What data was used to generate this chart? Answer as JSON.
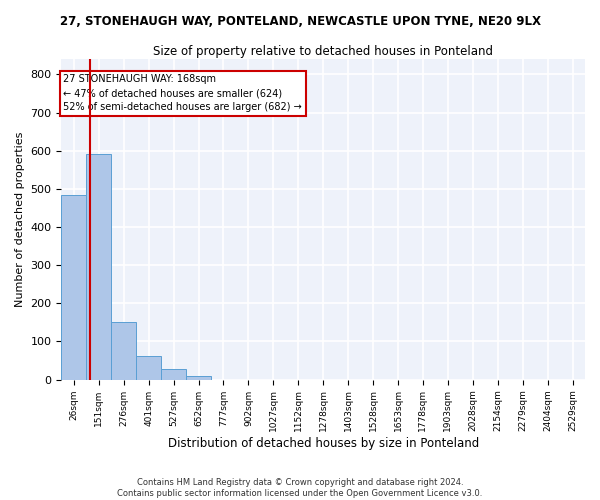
{
  "title1": "27, STONEHAUGH WAY, PONTELAND, NEWCASTLE UPON TYNE, NE20 9LX",
  "title2": "Size of property relative to detached houses in Ponteland",
  "xlabel": "Distribution of detached houses by size in Ponteland",
  "ylabel": "Number of detached properties",
  "categories": [
    "26sqm",
    "151sqm",
    "276sqm",
    "401sqm",
    "527sqm",
    "652sqm",
    "777sqm",
    "902sqm",
    "1027sqm",
    "1152sqm",
    "1278sqm",
    "1403sqm",
    "1528sqm",
    "1653sqm",
    "1778sqm",
    "1903sqm",
    "2028sqm",
    "2154sqm",
    "2279sqm",
    "2404sqm",
    "2529sqm"
  ],
  "bar_values": [
    485,
    592,
    150,
    63,
    28,
    10,
    0,
    0,
    0,
    0,
    0,
    0,
    0,
    0,
    0,
    0,
    0,
    0,
    0,
    0,
    0
  ],
  "bar_color": "#aec6e8",
  "bar_edge_color": "#5a9fd4",
  "property_line_color": "#cc0000",
  "annotation_line1": "27 STONEHAUGH WAY: 168sqm",
  "annotation_line2": "← 47% of detached houses are smaller (624)",
  "annotation_line3": "52% of semi-detached houses are larger (682) →",
  "ylim": [
    0,
    840
  ],
  "yticks": [
    0,
    100,
    200,
    300,
    400,
    500,
    600,
    700,
    800
  ],
  "background_color": "#eef2fa",
  "grid_color": "#ffffff",
  "footer1": "Contains HM Land Registry data © Crown copyright and database right 2024.",
  "footer2": "Contains public sector information licensed under the Open Government Licence v3.0."
}
